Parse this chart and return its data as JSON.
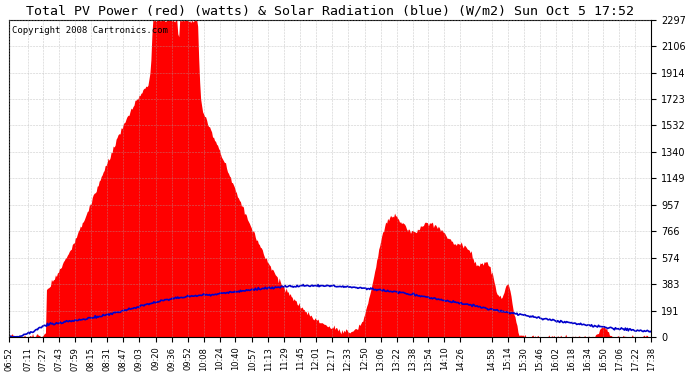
{
  "title": "Total PV Power (red) (watts) & Solar Radiation (blue) (W/m2) Sun Oct 5 17:52",
  "copyright": "Copyright 2008 Cartronics.com",
  "ymax": 2297.3,
  "yticks": [
    0.0,
    191.4,
    382.9,
    574.3,
    765.8,
    957.2,
    1148.7,
    1340.1,
    1531.6,
    1723.0,
    1914.5,
    2105.9,
    2297.3
  ],
  "xtick_labels": [
    "06:52",
    "07:11",
    "07:27",
    "07:43",
    "07:59",
    "08:15",
    "08:31",
    "08:47",
    "09:03",
    "09:20",
    "09:36",
    "09:52",
    "10:08",
    "10:24",
    "10:40",
    "10:57",
    "11:13",
    "11:29",
    "11:45",
    "12:01",
    "12:17",
    "12:33",
    "12:50",
    "13:06",
    "13:22",
    "13:38",
    "13:54",
    "14:10",
    "14:26",
    "14:58",
    "15:14",
    "15:30",
    "15:46",
    "16:02",
    "16:18",
    "16:34",
    "16:50",
    "17:06",
    "17:22",
    "17:38"
  ],
  "background_color": "#ffffff",
  "plot_bg_color": "#ffffff",
  "grid_color": "#aaaaaa",
  "red_color": "#ff0000",
  "blue_color": "#0000cc",
  "title_fontsize": 10,
  "copyright_fontsize": 7
}
